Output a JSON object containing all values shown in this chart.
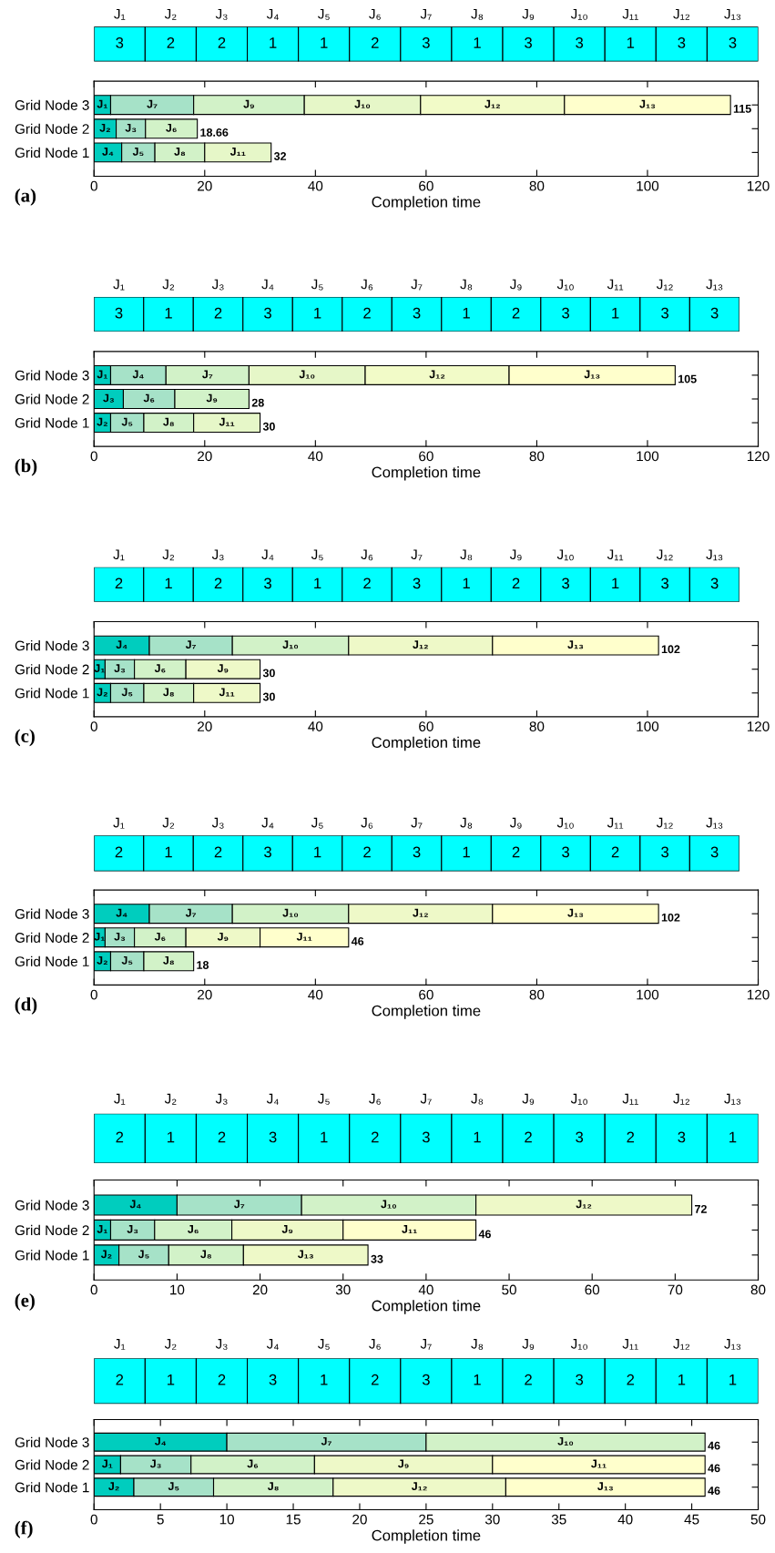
{
  "chart_data": [
    {
      "type": "other",
      "categories": [
        "J₁",
        "J₂",
        "J₃",
        "J₄",
        "J₅",
        "J₆",
        "J₇",
        "J₈",
        "J₉",
        "J₁₀",
        "J₁₁",
        "J₁₂",
        "J₁₃"
      ],
      "color": "#00ffff",
      "data_labels": true,
      "values": [
        3,
        2,
        2,
        1,
        1,
        2,
        3,
        1,
        3,
        3,
        1,
        3,
        3
      ]
    },
    {
      "type": "bar",
      "orientation": "horizontal",
      "stacked": true,
      "categories": [
        "Grid Node 3",
        "Grid Node 2",
        "Grid Node 1"
      ],
      "xlabel": "Completion time",
      "xlim": [
        0,
        120
      ],
      "xticks": [
        0,
        20,
        40,
        60,
        80,
        100,
        120
      ],
      "annotations": [
        "(a)"
      ],
      "totals": [
        "115",
        "18.66",
        "32"
      ],
      "series": [
        {
          "color": "#00cdbe",
          "values": [
            3,
            4,
            5
          ],
          "value_labels": [
            "J₁",
            "J₂",
            "J₄"
          ]
        },
        {
          "color": "#a6e2c8",
          "values": [
            15,
            5.3,
            6
          ],
          "value_labels": [
            "J₇",
            "J₃",
            "J₅"
          ]
        },
        {
          "color": "#d2f2c8",
          "values": [
            20,
            9.36,
            9
          ],
          "value_labels": [
            "J₉",
            "J₆",
            "J₈"
          ]
        },
        {
          "color": "#e6f7c8",
          "values": [
            21,
            null,
            12
          ],
          "value_labels": [
            "J₁₀",
            null,
            "J₁₁"
          ]
        },
        {
          "color": "#f2fbc8",
          "values": [
            26,
            null,
            null
          ],
          "value_labels": [
            "J₁₂",
            null,
            null
          ]
        },
        {
          "color": "#ffffcc",
          "values": [
            30,
            null,
            null
          ],
          "value_labels": [
            "J₁₃",
            null,
            null
          ]
        }
      ]
    },
    {
      "type": "other",
      "categories": [
        "J₁",
        "J₂",
        "J₃",
        "J₄",
        "J₅",
        "J₆",
        "J₇",
        "J₈",
        "J₉",
        "J₁₀",
        "J₁₁",
        "J₁₂",
        "J₁₃"
      ],
      "color": "#00ffff",
      "data_labels": true,
      "values": [
        3,
        1,
        2,
        3,
        1,
        2,
        3,
        1,
        2,
        3,
        1,
        3,
        3
      ]
    },
    {
      "type": "bar",
      "orientation": "horizontal",
      "stacked": true,
      "categories": [
        "Grid Node 3",
        "Grid Node 2",
        "Grid Node 1"
      ],
      "xlabel": "Completion time",
      "xlim": [
        0,
        120
      ],
      "xticks": [
        0,
        20,
        40,
        60,
        80,
        100,
        120
      ],
      "annotations": [
        "(b)"
      ],
      "totals": [
        "105",
        "28",
        "30"
      ],
      "series": [
        {
          "color": "#00cdbe",
          "values": [
            3,
            5.3,
            3
          ],
          "value_labels": [
            "J₁",
            "J₃",
            "J₂"
          ]
        },
        {
          "color": "#a6e2c8",
          "values": [
            10,
            9.3,
            6
          ],
          "value_labels": [
            "J₄",
            "J₆",
            "J₅"
          ]
        },
        {
          "color": "#d2f2c8",
          "values": [
            15,
            13.4,
            9
          ],
          "value_labels": [
            "J₇",
            "J₉",
            "J₈"
          ]
        },
        {
          "color": "#e6f7c8",
          "values": [
            21,
            null,
            12
          ],
          "value_labels": [
            "J₁₀",
            null,
            "J₁₁"
          ]
        },
        {
          "color": "#f2fbc8",
          "values": [
            26,
            null,
            null
          ],
          "value_labels": [
            "J₁₂",
            null,
            null
          ]
        },
        {
          "color": "#ffffcc",
          "values": [
            30,
            null,
            null
          ],
          "value_labels": [
            "J₁₃",
            null,
            null
          ]
        }
      ]
    },
    {
      "type": "other",
      "categories": [
        "J₁",
        "J₂",
        "J₃",
        "J₄",
        "J₅",
        "J₆",
        "J₇",
        "J₈",
        "J₉",
        "J₁₀",
        "J₁₁",
        "J₁₂",
        "J₁₃"
      ],
      "color": "#00ffff",
      "data_labels": true,
      "values": [
        2,
        1,
        2,
        3,
        1,
        2,
        3,
        1,
        2,
        3,
        1,
        3,
        3
      ]
    },
    {
      "type": "bar",
      "orientation": "horizontal",
      "stacked": true,
      "categories": [
        "Grid Node 3",
        "Grid Node 2",
        "Grid Node 1"
      ],
      "xlabel": "Completion time",
      "xlim": [
        0,
        120
      ],
      "xticks": [
        0,
        20,
        40,
        60,
        80,
        100,
        120
      ],
      "annotations": [
        "(c)"
      ],
      "totals": [
        "102",
        "30",
        "30"
      ],
      "series": [
        {
          "color": "#00cdbe",
          "values": [
            10,
            2,
            3
          ],
          "value_labels": [
            "J₄",
            "J₁",
            "J₂"
          ]
        },
        {
          "color": "#a6e2c8",
          "values": [
            15,
            5.3,
            6
          ],
          "value_labels": [
            "J₇",
            "J₃",
            "J₅"
          ]
        },
        {
          "color": "#d2f2c8",
          "values": [
            21,
            9.3,
            9
          ],
          "value_labels": [
            "J₁₀",
            "J₆",
            "J₈"
          ]
        },
        {
          "color": "#eef9c8",
          "values": [
            26,
            13.4,
            12
          ],
          "value_labels": [
            "J₁₂",
            "J₉",
            "J₁₁"
          ]
        },
        {
          "color": "#ffffcc",
          "values": [
            30,
            null,
            null
          ],
          "value_labels": [
            "J₁₃",
            null,
            null
          ]
        }
      ]
    },
    {
      "type": "other",
      "categories": [
        "J₁",
        "J₂",
        "J₃",
        "J₄",
        "J₅",
        "J₆",
        "J₇",
        "J₈",
        "J₉",
        "J₁₀",
        "J₁₁",
        "J₁₂",
        "J₁₃"
      ],
      "color": "#00ffff",
      "data_labels": true,
      "values": [
        2,
        1,
        2,
        3,
        1,
        2,
        3,
        1,
        2,
        3,
        2,
        3,
        3
      ]
    },
    {
      "type": "bar",
      "orientation": "horizontal",
      "stacked": true,
      "categories": [
        "Grid Node 3",
        "Grid Node 2",
        "Grid Node 1"
      ],
      "xlabel": "Completion time",
      "xlim": [
        0,
        120
      ],
      "xticks": [
        0,
        20,
        40,
        60,
        80,
        100,
        120
      ],
      "annotations": [
        "(d)"
      ],
      "totals": [
        "102",
        "46",
        "18"
      ],
      "series": [
        {
          "color": "#00cdbe",
          "values": [
            10,
            2,
            3
          ],
          "value_labels": [
            "J₄",
            "J₁",
            "J₂"
          ]
        },
        {
          "color": "#a6e2c8",
          "values": [
            15,
            5.3,
            6
          ],
          "value_labels": [
            "J₇",
            "J₃",
            "J₅"
          ]
        },
        {
          "color": "#d2f2c8",
          "values": [
            21,
            9.3,
            9
          ],
          "value_labels": [
            "J₁₀",
            "J₆",
            "J₈"
          ]
        },
        {
          "color": "#eef9c8",
          "values": [
            26,
            13.4,
            null
          ],
          "value_labels": [
            "J₁₂",
            "J₉",
            null
          ]
        },
        {
          "color": "#ffffcc",
          "values": [
            30,
            16,
            null
          ],
          "value_labels": [
            "J₁₃",
            "J₁₁",
            null
          ]
        }
      ]
    },
    {
      "type": "other",
      "categories": [
        "J₁",
        "J₂",
        "J₃",
        "J₄",
        "J₅",
        "J₆",
        "J₇",
        "J₈",
        "J₉",
        "J₁₀",
        "J₁₁",
        "J₁₂",
        "J₁₃"
      ],
      "color": "#00ffff",
      "data_labels": true,
      "values": [
        2,
        1,
        2,
        3,
        1,
        2,
        3,
        1,
        2,
        3,
        2,
        3,
        1
      ]
    },
    {
      "type": "bar",
      "orientation": "horizontal",
      "stacked": true,
      "categories": [
        "Grid Node 3",
        "Grid Node 2",
        "Grid Node 1"
      ],
      "xlabel": "Completion time",
      "xlim": [
        0,
        80
      ],
      "xticks": [
        0,
        10,
        20,
        30,
        40,
        50,
        60,
        70,
        80
      ],
      "annotations": [
        "(e)"
      ],
      "totals": [
        "72",
        "46",
        "33"
      ],
      "series": [
        {
          "color": "#00cdbe",
          "values": [
            10,
            2,
            3
          ],
          "value_labels": [
            "J₄",
            "J₁",
            "J₂"
          ]
        },
        {
          "color": "#a6e2c8",
          "values": [
            15,
            5.3,
            6
          ],
          "value_labels": [
            "J₇",
            "J₃",
            "J₅"
          ]
        },
        {
          "color": "#d2f2c8",
          "values": [
            21,
            9.3,
            9
          ],
          "value_labels": [
            "J₁₀",
            "J₆",
            "J₈"
          ]
        },
        {
          "color": "#eef9c8",
          "values": [
            26,
            13.4,
            15
          ],
          "value_labels": [
            "J₁₂",
            "J₉",
            "J₁₃"
          ]
        },
        {
          "color": "#ffffcc",
          "values": [
            null,
            16,
            null
          ],
          "value_labels": [
            null,
            "J₁₁",
            null
          ]
        }
      ]
    },
    {
      "type": "other",
      "categories": [
        "J₁",
        "J₂",
        "J₃",
        "J₄",
        "J₅",
        "J₆",
        "J₇",
        "J₈",
        "J₉",
        "J₁₀",
        "J₁₁",
        "J₁₂",
        "J₁₃"
      ],
      "color": "#00ffff",
      "data_labels": true,
      "values": [
        2,
        1,
        2,
        3,
        1,
        2,
        3,
        1,
        2,
        3,
        2,
        1,
        1
      ]
    },
    {
      "type": "bar",
      "orientation": "horizontal",
      "stacked": true,
      "categories": [
        "Grid Node 3",
        "Grid Node 2",
        "Grid Node 1"
      ],
      "xlabel": "Completion time",
      "xlim": [
        0,
        50
      ],
      "xticks": [
        0,
        5,
        10,
        15,
        20,
        25,
        30,
        35,
        40,
        45,
        50
      ],
      "annotations": [
        "(f)"
      ],
      "totals": [
        "46",
        "46",
        "46"
      ],
      "series": [
        {
          "color": "#00cdbe",
          "values": [
            10,
            2,
            3
          ],
          "value_labels": [
            "J₄",
            "J₁",
            "J₂"
          ]
        },
        {
          "color": "#a6e2c8",
          "values": [
            15,
            5.3,
            6
          ],
          "value_labels": [
            "J₇",
            "J₃",
            "J₅"
          ]
        },
        {
          "color": "#d2f2c8",
          "values": [
            21,
            9.3,
            9
          ],
          "value_labels": [
            "J₁₀",
            "J₆",
            "J₈"
          ]
        },
        {
          "color": "#eef9c8",
          "values": [
            null,
            13.4,
            13
          ],
          "value_labels": [
            null,
            "J₉",
            "J₁₂"
          ]
        },
        {
          "color": "#ffffcc",
          "values": [
            null,
            16,
            15
          ],
          "value_labels": [
            null,
            "J₁₁",
            "J₁₃"
          ]
        }
      ]
    }
  ]
}
